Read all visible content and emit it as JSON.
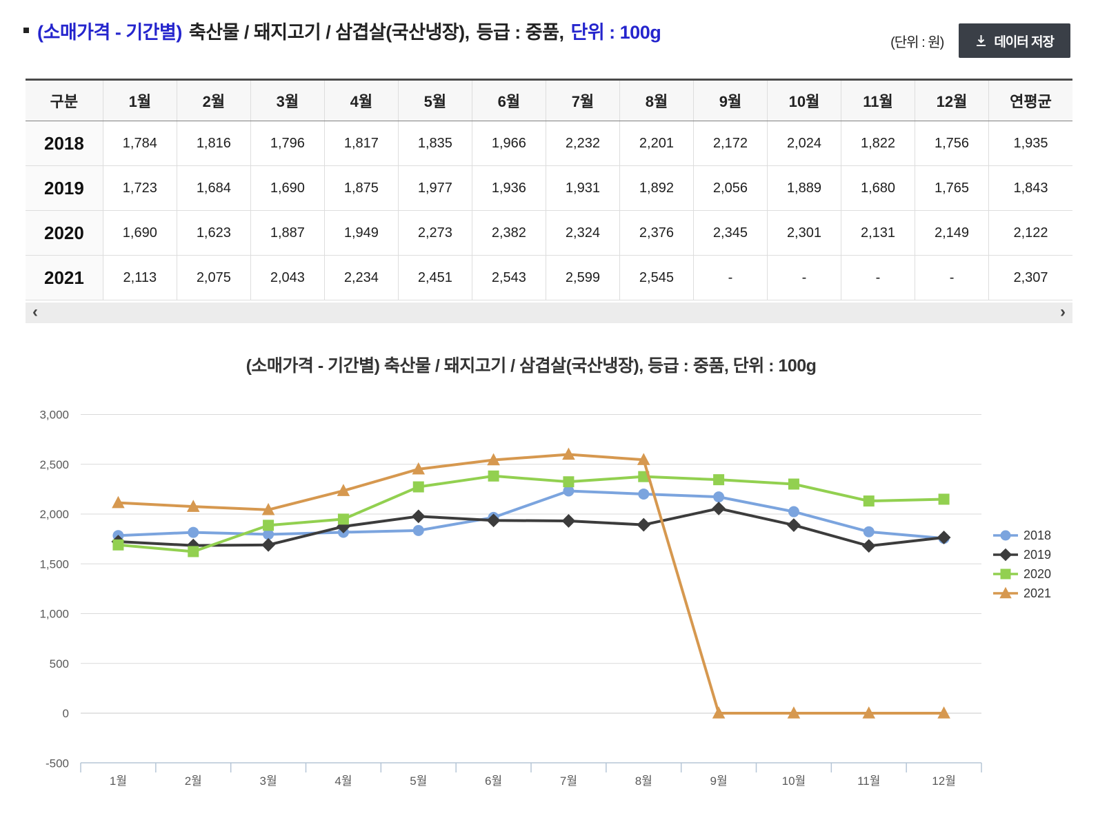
{
  "header": {
    "title_prefix": "(소매가격 - 기간별)",
    "title_main": "축산물 / 돼지고기 / 삼겹살(국산냉장),",
    "title_grade": "등급 : 중품,",
    "title_unit": "단위 : 100g",
    "unit_note": "(단위 : 원)",
    "save_button": {
      "label": "데이터 저장",
      "icon": "download-icon"
    }
  },
  "table": {
    "columns": [
      "구분",
      "1월",
      "2월",
      "3월",
      "4월",
      "5월",
      "6월",
      "7월",
      "8월",
      "9월",
      "10월",
      "11월",
      "12월",
      "연평균"
    ],
    "rows": [
      {
        "year": "2018",
        "values": [
          "1,784",
          "1,816",
          "1,796",
          "1,817",
          "1,835",
          "1,966",
          "2,232",
          "2,201",
          "2,172",
          "2,024",
          "1,822",
          "1,756",
          "1,935"
        ]
      },
      {
        "year": "2019",
        "values": [
          "1,723",
          "1,684",
          "1,690",
          "1,875",
          "1,977",
          "1,936",
          "1,931",
          "1,892",
          "2,056",
          "1,889",
          "1,680",
          "1,765",
          "1,843"
        ]
      },
      {
        "year": "2020",
        "values": [
          "1,690",
          "1,623",
          "1,887",
          "1,949",
          "2,273",
          "2,382",
          "2,324",
          "2,376",
          "2,345",
          "2,301",
          "2,131",
          "2,149",
          "2,122"
        ]
      },
      {
        "year": "2021",
        "values": [
          "2,113",
          "2,075",
          "2,043",
          "2,234",
          "2,451",
          "2,543",
          "2,599",
          "2,545",
          "-",
          "-",
          "-",
          "-",
          "2,307"
        ]
      }
    ],
    "scroll": {
      "left_arrow": "‹",
      "right_arrow": "›"
    }
  },
  "chart_data": {
    "type": "line",
    "title": "(소매가격 - 기간별) 축산물 / 돼지고기 / 삼겹살(국산냉장), 등급 : 중품, 단위 : 100g",
    "categories": [
      "1월",
      "2월",
      "3월",
      "4월",
      "5월",
      "6월",
      "7월",
      "8월",
      "9월",
      "10월",
      "11월",
      "12월"
    ],
    "series": [
      {
        "name": "2018",
        "color": "#7ba4de",
        "marker": "circle",
        "values": [
          1784,
          1816,
          1796,
          1817,
          1835,
          1966,
          2232,
          2201,
          2172,
          2024,
          1822,
          1756
        ]
      },
      {
        "name": "2019",
        "color": "#3c3c3c",
        "marker": "diamond",
        "values": [
          1723,
          1684,
          1690,
          1875,
          1977,
          1936,
          1931,
          1892,
          2056,
          1889,
          1680,
          1765
        ]
      },
      {
        "name": "2020",
        "color": "#92d050",
        "marker": "square",
        "values": [
          1690,
          1623,
          1887,
          1949,
          2273,
          2382,
          2324,
          2376,
          2345,
          2301,
          2131,
          2149
        ]
      },
      {
        "name": "2021",
        "color": "#d6984f",
        "marker": "triangle",
        "values": [
          2113,
          2075,
          2043,
          2234,
          2451,
          2543,
          2599,
          2545,
          0,
          0,
          0,
          0
        ]
      }
    ],
    "ylim": [
      -500,
      3000
    ],
    "ytick_step": 500,
    "grid": true,
    "legend_position": "right",
    "axis_color": "#b5c5d6",
    "grid_color": "#d9d9d9",
    "zero_grid_color": "#c9c9c9",
    "label_color": "#595959",
    "title_color": "#333333"
  }
}
